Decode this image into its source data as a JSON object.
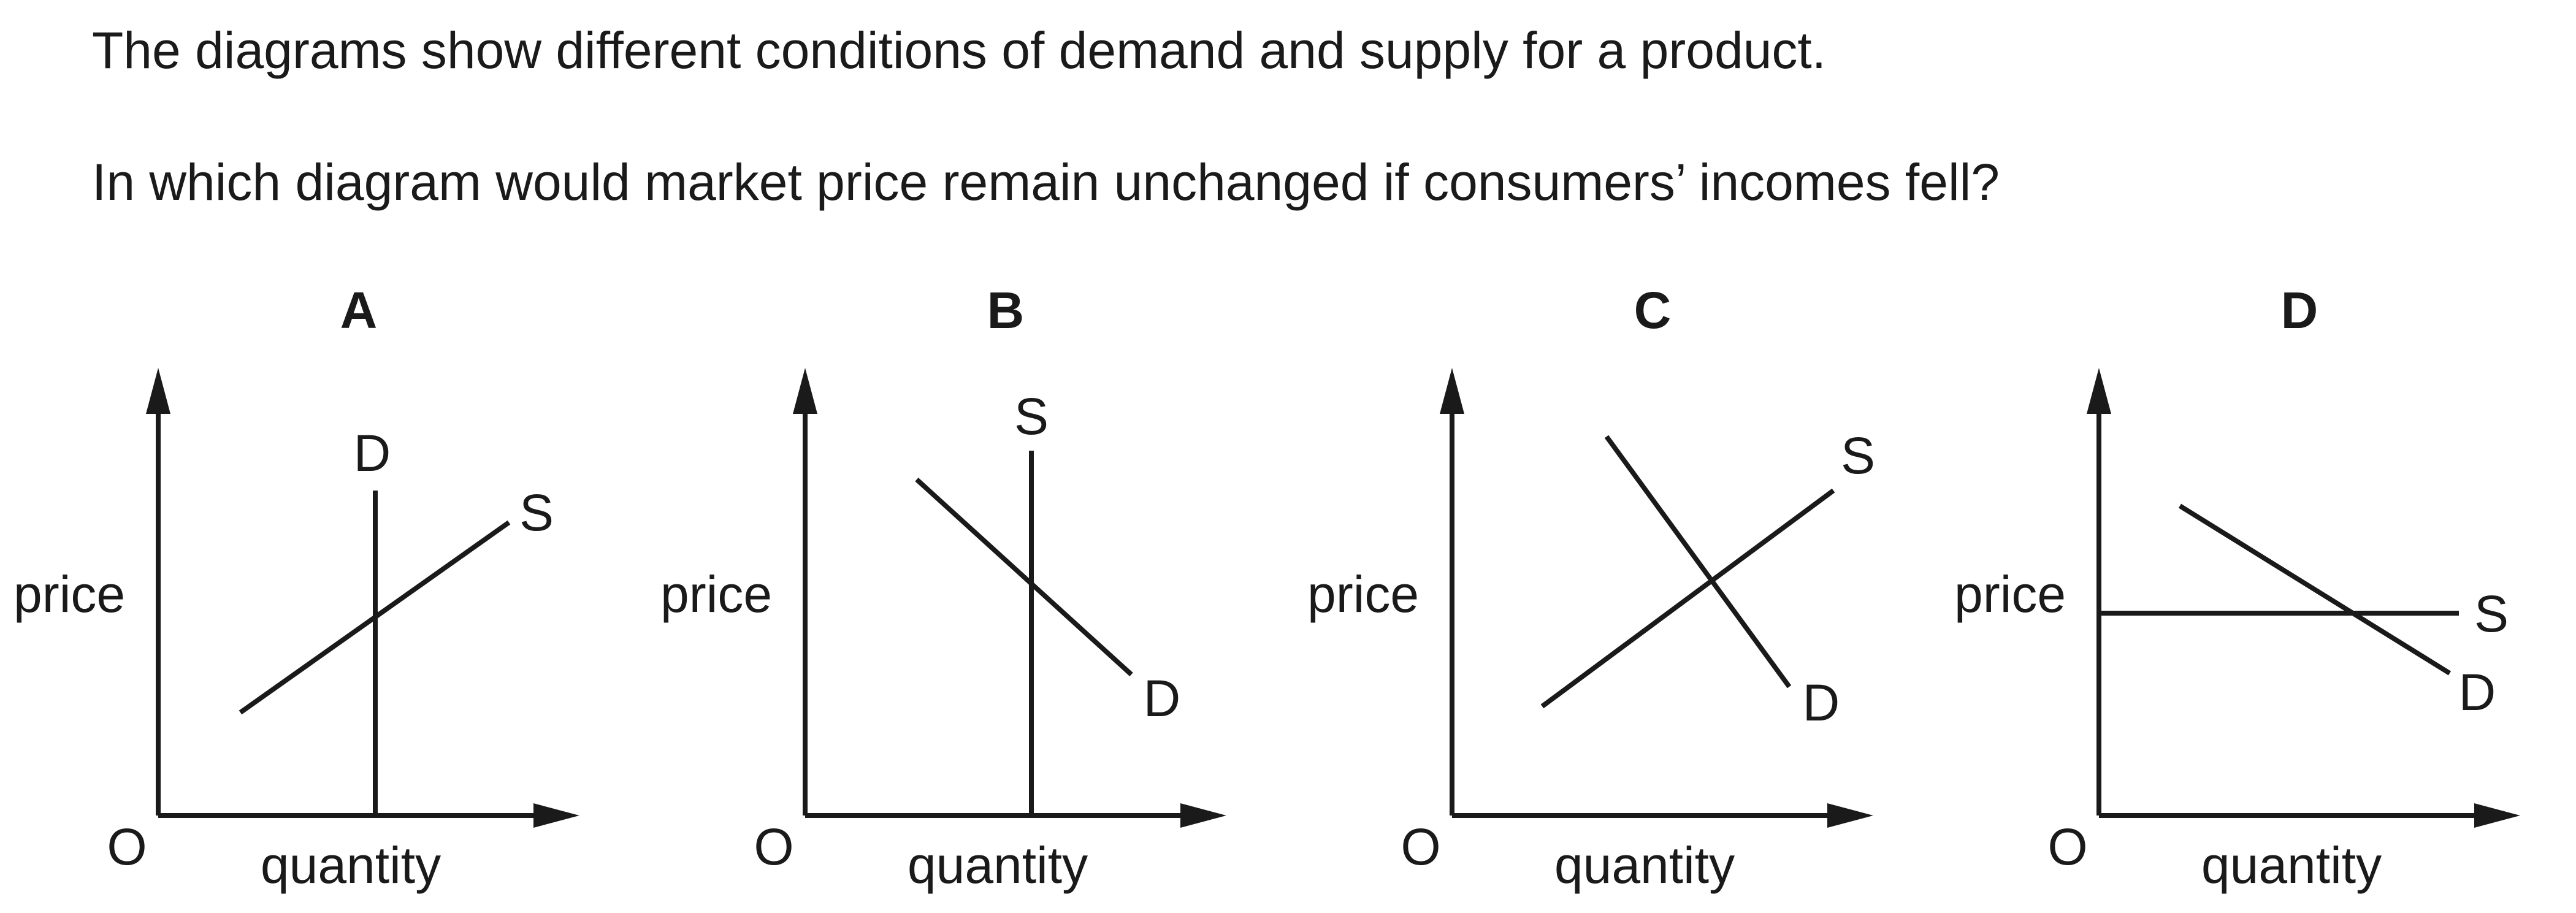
{
  "question": {
    "intro": "The diagrams show different conditions of demand and supply for a product.",
    "prompt": "In which diagram would market price remain unchanged if consumers’ incomes fell?"
  },
  "diagrams": [
    {
      "letter": "A",
      "y_axis_label": "price",
      "x_axis_label": "quantity",
      "origin_label": "O",
      "demand": {
        "label": "D",
        "shape": "vertical"
      },
      "supply": {
        "label": "S",
        "shape": "upward-sloping"
      }
    },
    {
      "letter": "B",
      "y_axis_label": "price",
      "x_axis_label": "quantity",
      "origin_label": "O",
      "demand": {
        "label": "D",
        "shape": "downward-sloping"
      },
      "supply": {
        "label": "S",
        "shape": "vertical"
      }
    },
    {
      "letter": "C",
      "y_axis_label": "price",
      "x_axis_label": "quantity",
      "origin_label": "O",
      "demand": {
        "label": "D",
        "shape": "downward-sloping"
      },
      "supply": {
        "label": "S",
        "shape": "upward-sloping"
      }
    },
    {
      "letter": "D",
      "y_axis_label": "price",
      "x_axis_label": "quantity",
      "origin_label": "O",
      "demand": {
        "label": "D",
        "shape": "downward-sloping"
      },
      "supply": {
        "label": "S",
        "shape": "horizontal"
      }
    }
  ]
}
